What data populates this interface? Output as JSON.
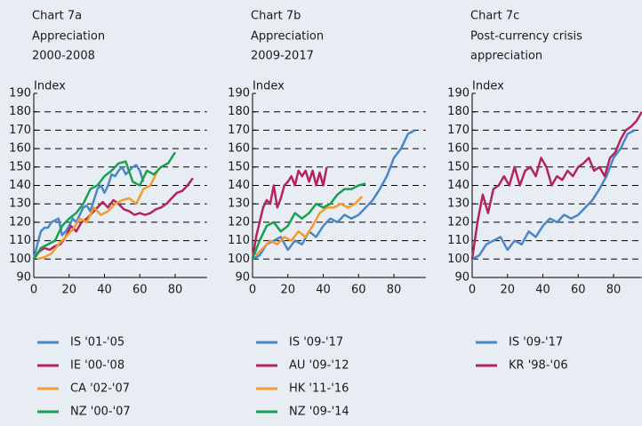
{
  "chart_data": [
    {
      "type": "line",
      "title": "Chart 7a",
      "subtitle": [
        "Appreciation",
        "2000-2008"
      ],
      "y_label": "Index",
      "xlim": [
        0,
        98
      ],
      "xticks": [
        0,
        20,
        40,
        60,
        80
      ],
      "ylim": [
        90,
        190
      ],
      "yticks": [
        90,
        100,
        110,
        120,
        130,
        140,
        150,
        160,
        170,
        180,
        190
      ],
      "grid": true,
      "series": [
        {
          "name": "IS '01-'05",
          "color": "#4a87c6",
          "x": [
            0,
            2,
            4,
            6,
            8,
            10,
            12,
            14,
            16,
            18,
            20,
            22,
            24,
            26,
            28,
            30,
            32,
            34,
            36,
            38,
            40,
            42,
            44,
            46,
            48,
            50,
            52,
            54,
            56,
            58,
            60,
            62
          ],
          "values": [
            100,
            108,
            115,
            117,
            117,
            120,
            121,
            122,
            113,
            115,
            118,
            122,
            120,
            124,
            128,
            129,
            126,
            132,
            138,
            140,
            136,
            140,
            146,
            145,
            148,
            150,
            146,
            148,
            150,
            151,
            148,
            142
          ]
        },
        {
          "name": "IE '00-'08",
          "color": "#b3245e",
          "x": [
            0,
            3,
            6,
            9,
            12,
            15,
            18,
            21,
            24,
            27,
            30,
            33,
            36,
            39,
            42,
            45,
            48,
            51,
            54,
            57,
            60,
            63,
            66,
            69,
            72,
            75,
            78,
            81,
            84,
            87,
            90
          ],
          "values": [
            100,
            104,
            106,
            105,
            107,
            108,
            112,
            118,
            115,
            120,
            122,
            125,
            128,
            131,
            128,
            132,
            130,
            127,
            126,
            124,
            125,
            124,
            125,
            127,
            128,
            130,
            133,
            136,
            137,
            140,
            144
          ]
        },
        {
          "name": "CA '02-'07",
          "color": "#f39b2c",
          "x": [
            2,
            6,
            10,
            14,
            18,
            22,
            26,
            30,
            34,
            38,
            42,
            46,
            50,
            54,
            58,
            62,
            66,
            70
          ],
          "values": [
            100,
            101,
            103,
            108,
            112,
            116,
            122,
            120,
            128,
            124,
            126,
            130,
            132,
            133,
            130,
            138,
            140,
            148
          ]
        },
        {
          "name": "NZ '00-'07",
          "color": "#17a050",
          "x": [
            0,
            4,
            8,
            12,
            16,
            20,
            24,
            28,
            32,
            36,
            40,
            44,
            48,
            52,
            56,
            60,
            64,
            68,
            72,
            76,
            80
          ],
          "values": [
            100,
            106,
            108,
            110,
            118,
            122,
            125,
            130,
            138,
            140,
            145,
            148,
            152,
            153,
            142,
            140,
            148,
            146,
            150,
            152,
            158
          ]
        }
      ]
    },
    {
      "type": "line",
      "title": "Chart 7b",
      "subtitle": [
        "Appreciation",
        "2009-2017"
      ],
      "y_label": "Index",
      "xlim": [
        0,
        98
      ],
      "xticks": [
        0,
        20,
        40,
        60,
        80
      ],
      "ylim": [
        90,
        190
      ],
      "yticks": [
        90,
        100,
        110,
        120,
        130,
        140,
        150,
        160,
        170,
        180,
        190
      ],
      "grid": true,
      "series": [
        {
          "name": "IS '09-'17",
          "color": "#4a87c6",
          "x": [
            0,
            4,
            8,
            12,
            16,
            20,
            24,
            28,
            32,
            36,
            40,
            44,
            48,
            52,
            56,
            60,
            64,
            68,
            72,
            76,
            80,
            84,
            88,
            92
          ],
          "values": [
            100,
            102,
            108,
            110,
            112,
            105,
            110,
            108,
            115,
            112,
            118,
            122,
            120,
            124,
            122,
            124,
            128,
            132,
            138,
            145,
            155,
            160,
            168,
            170
          ]
        },
        {
          "name": "AU '09-'12",
          "color": "#b3245e",
          "x": [
            0,
            2,
            4,
            6,
            8,
            10,
            12,
            14,
            16,
            18,
            20,
            22,
            24,
            26,
            28,
            30,
            32,
            34,
            36,
            38,
            40,
            42
          ],
          "values": [
            100,
            112,
            120,
            128,
            132,
            130,
            140,
            128,
            133,
            140,
            142,
            145,
            140,
            148,
            145,
            148,
            142,
            148,
            140,
            147,
            140,
            150
          ]
        },
        {
          "name": "HK '11-'16",
          "color": "#f39b2c",
          "x": [
            2,
            6,
            10,
            14,
            18,
            22,
            26,
            30,
            34,
            38,
            42,
            46,
            50,
            54,
            58,
            62
          ],
          "values": [
            102,
            106,
            110,
            108,
            112,
            110,
            115,
            112,
            118,
            125,
            128,
            128,
            130,
            128,
            130,
            134
          ]
        },
        {
          "name": "NZ '09-'14",
          "color": "#17a050",
          "x": [
            0,
            4,
            8,
            12,
            16,
            20,
            24,
            28,
            32,
            36,
            40,
            44,
            48,
            52,
            56,
            60,
            64
          ],
          "values": [
            100,
            110,
            118,
            120,
            115,
            118,
            125,
            122,
            125,
            130,
            128,
            130,
            135,
            138,
            138,
            140,
            141
          ]
        }
      ]
    },
    {
      "type": "line",
      "title": "Chart 7c",
      "subtitle": [
        "Post-currency crisis",
        "appreciation"
      ],
      "y_label": "Index",
      "xlim": [
        0,
        96
      ],
      "xticks": [
        0,
        20,
        40,
        60,
        80
      ],
      "ylim": [
        90,
        190
      ],
      "yticks": [
        90,
        100,
        110,
        120,
        130,
        140,
        150,
        160,
        170,
        180,
        190
      ],
      "grid": true,
      "series": [
        {
          "name": "IS '09-'17",
          "color": "#4a87c6",
          "x": [
            0,
            4,
            8,
            12,
            16,
            20,
            24,
            28,
            32,
            36,
            40,
            44,
            48,
            52,
            56,
            60,
            64,
            68,
            72,
            76,
            80,
            84,
            88,
            92
          ],
          "values": [
            100,
            102,
            108,
            110,
            112,
            105,
            110,
            108,
            115,
            112,
            118,
            122,
            120,
            124,
            122,
            124,
            128,
            132,
            138,
            145,
            155,
            160,
            168,
            170
          ]
        },
        {
          "name": "KR '98-'06",
          "color": "#b3245e",
          "x": [
            0,
            3,
            6,
            9,
            12,
            15,
            18,
            21,
            24,
            27,
            30,
            33,
            36,
            39,
            42,
            45,
            48,
            51,
            54,
            57,
            60,
            63,
            66,
            69,
            72,
            75,
            78,
            81,
            84,
            87,
            90,
            93,
            96
          ],
          "values": [
            100,
            120,
            135,
            125,
            138,
            140,
            145,
            140,
            150,
            140,
            148,
            150,
            145,
            155,
            150,
            140,
            145,
            143,
            148,
            145,
            150,
            152,
            155,
            148,
            150,
            145,
            155,
            158,
            165,
            170,
            172,
            175,
            180
          ]
        }
      ]
    }
  ]
}
